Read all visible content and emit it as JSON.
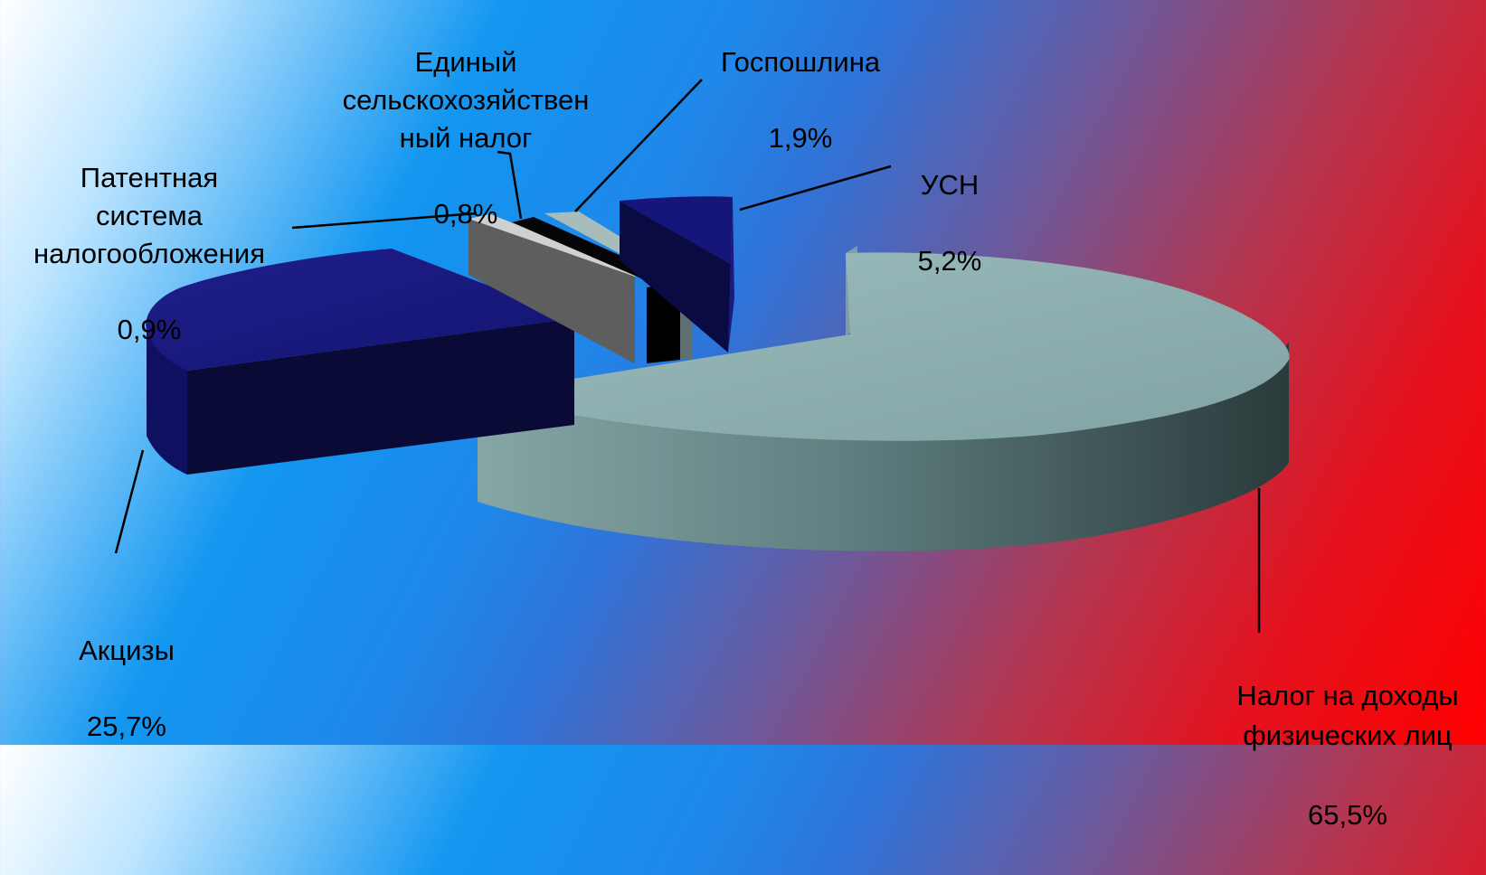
{
  "chart_data": {
    "type": "pie",
    "style": "3d-exploded",
    "slices": [
      {
        "name": "Налог на доходы физических лиц",
        "label": "Налог на доходы\nфизических лиц",
        "value_label": "65,5%",
        "value": 65.5,
        "color": "#8fb1b1",
        "label_color": "#000000"
      },
      {
        "name": "Акцизы",
        "label": "Акцизы",
        "value_label": "25,7%",
        "value": 25.7,
        "color": "#16167a"
      },
      {
        "name": "Патентная система налогообложения",
        "label": "Патентная\nсистема\nналогообложения",
        "value_label": "0,9%",
        "value": 0.9,
        "color": "#c2c2c2"
      },
      {
        "name": "Единый сельскохозяйственный налог",
        "label": "Единый\nсельскохозяйствен\nный налог",
        "value_label": "0,8%",
        "value": 0.8,
        "color": "#000000"
      },
      {
        "name": "Госпошлина",
        "label": "Госпошлина",
        "value_label": "1,9%",
        "value": 1.9,
        "color": "#9fb6b6"
      },
      {
        "name": "УСН",
        "label": "УСН",
        "value_label": "5,2%",
        "value": 5.2,
        "color": "#16167a"
      }
    ]
  }
}
